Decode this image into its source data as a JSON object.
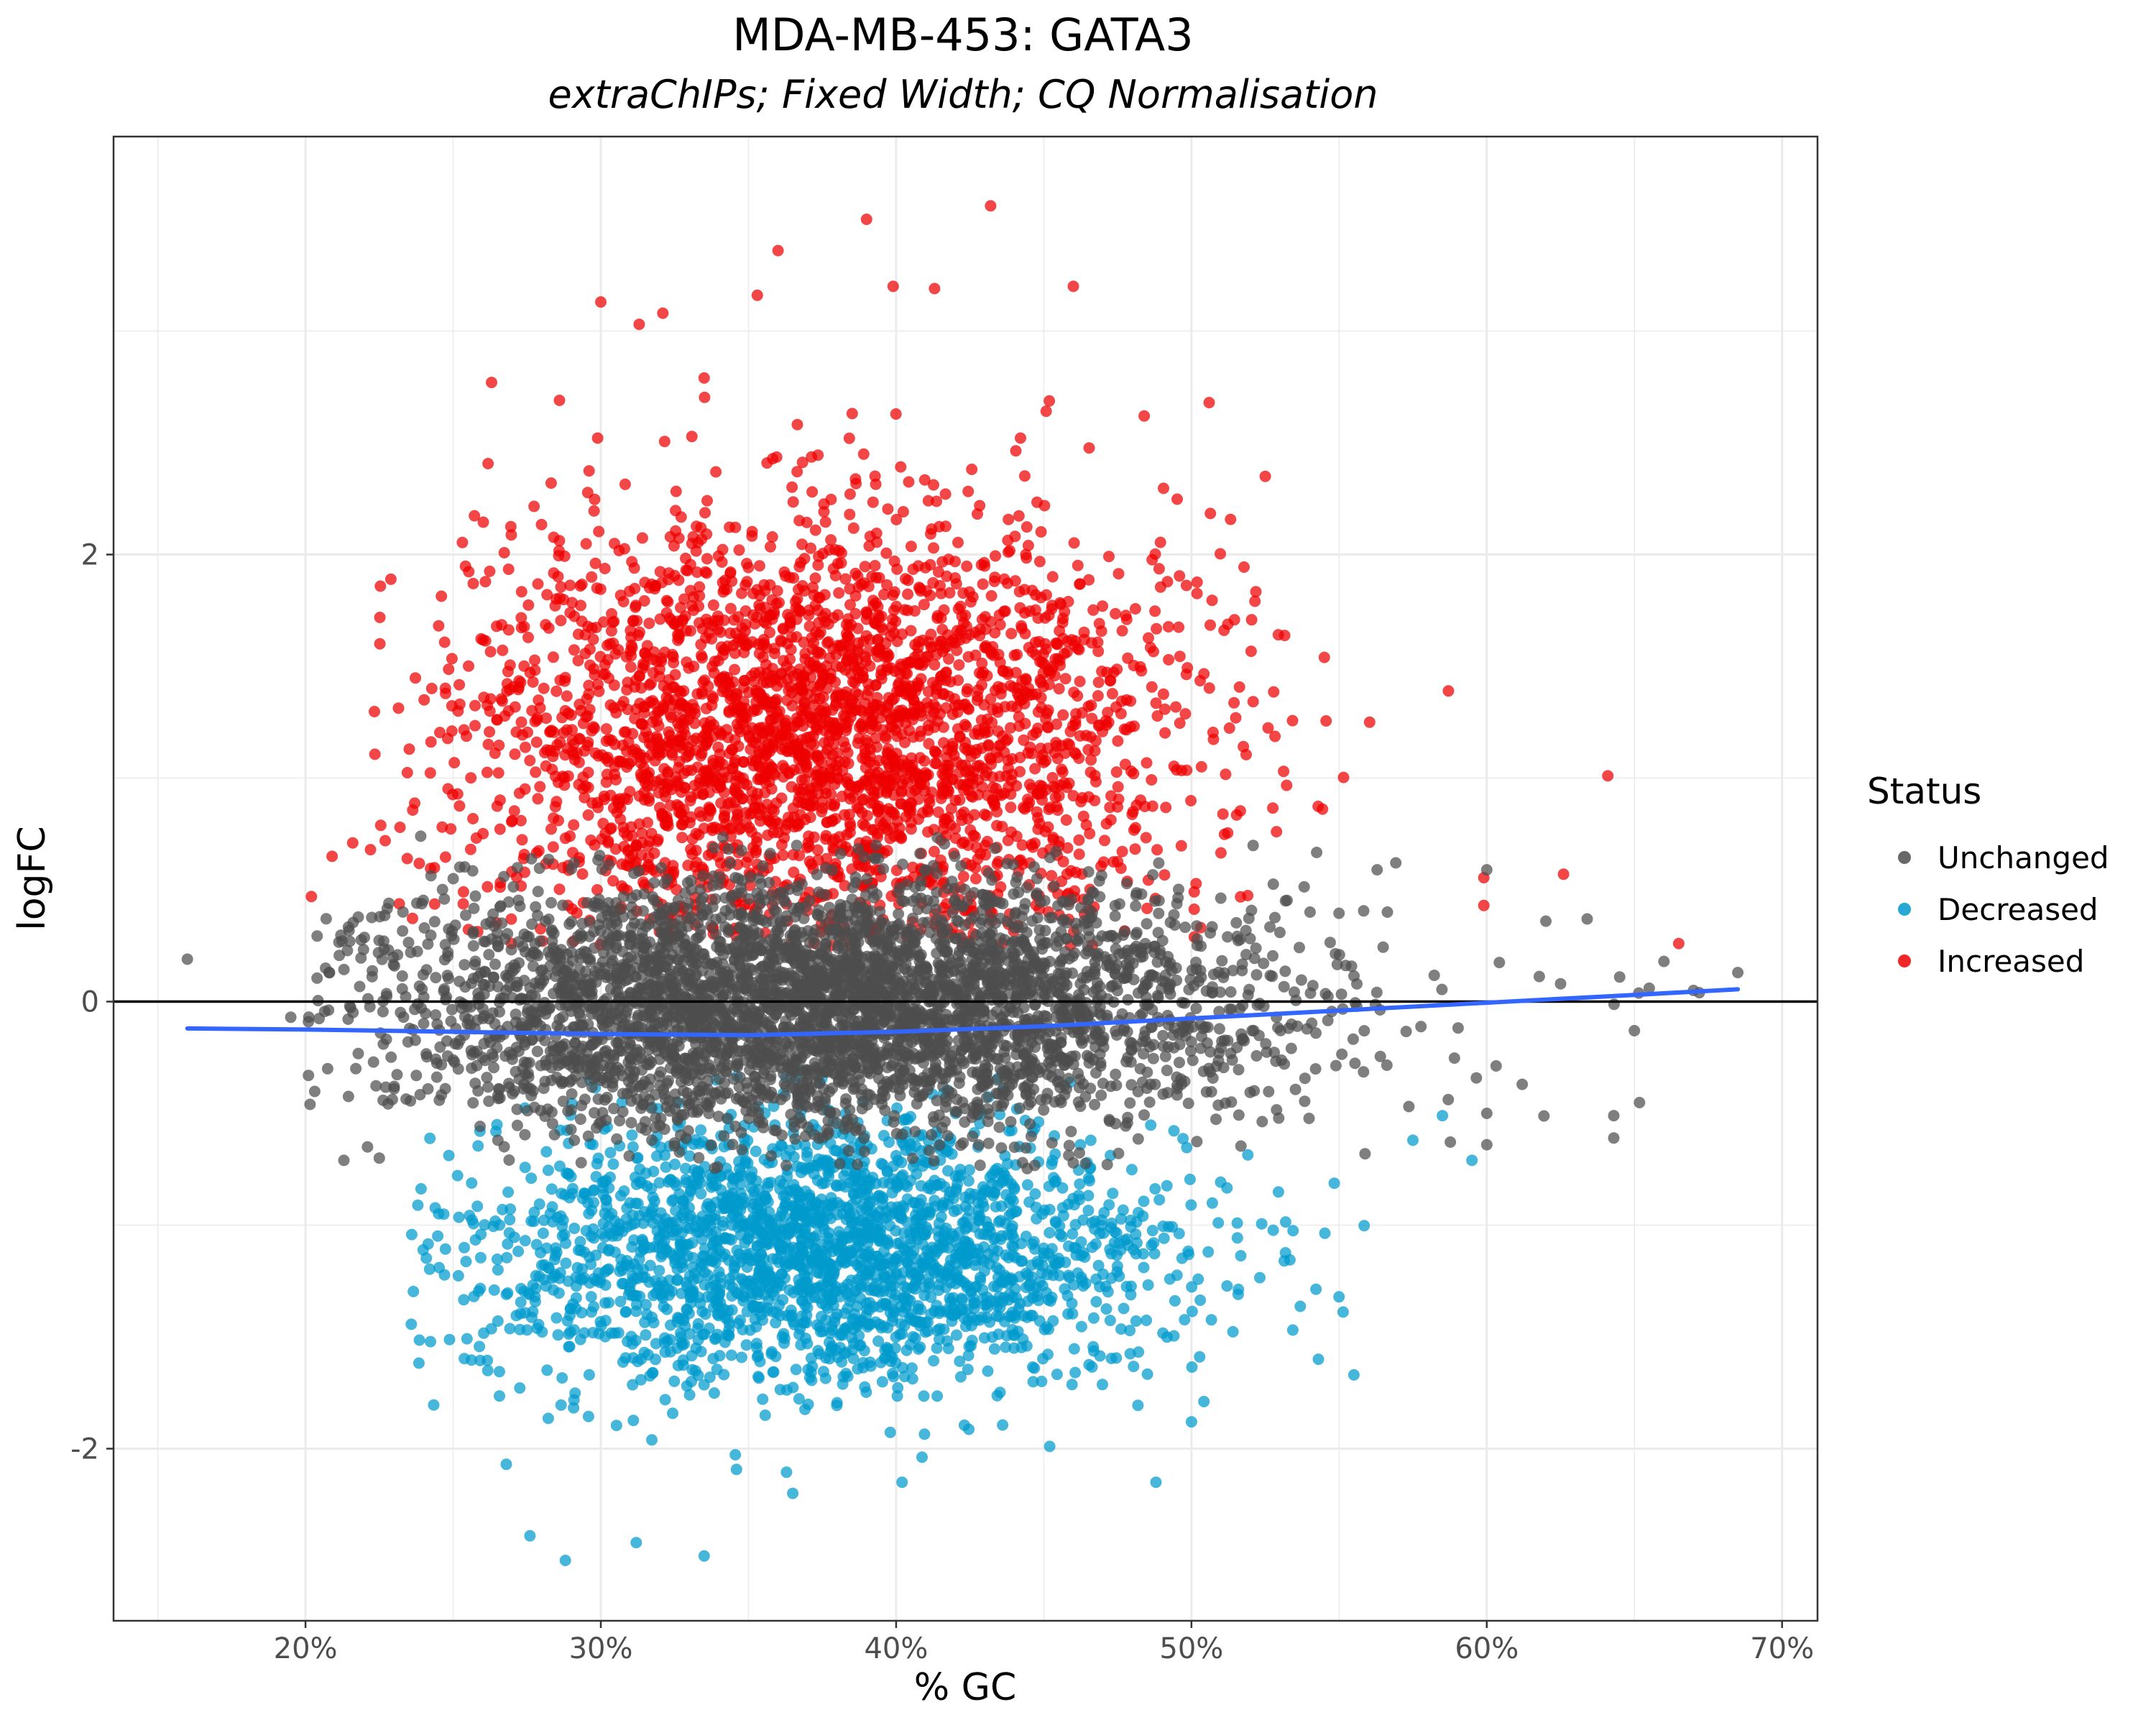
{
  "chart_data": {
    "type": "scatter",
    "title": "MDA-MB-453: GATA3",
    "subtitle": "extraChIPs; Fixed Width; CQ Normalisation",
    "xlabel": "% GC",
    "ylabel": "logFC",
    "xlim": [
      0.135,
      0.712
    ],
    "ylim": [
      -2.77,
      3.87
    ],
    "x_ticks": [
      {
        "value": 0.2,
        "label": "20%"
      },
      {
        "value": 0.3,
        "label": "30%"
      },
      {
        "value": 0.4,
        "label": "40%"
      },
      {
        "value": 0.5,
        "label": "50%"
      },
      {
        "value": 0.6,
        "label": "60%"
      },
      {
        "value": 0.7,
        "label": "70%"
      }
    ],
    "y_ticks": [
      {
        "value": -2,
        "label": "-2"
      },
      {
        "value": 0,
        "label": "0"
      },
      {
        "value": 2,
        "label": "2"
      }
    ],
    "grid": true,
    "reference_line": {
      "y": 0,
      "color": "#000000"
    },
    "legend": {
      "title": "Status",
      "placement": "right",
      "entries": [
        {
          "label": "Unchanged",
          "color": "#4D4D4D"
        },
        {
          "label": "Decreased",
          "color": "#009ACD"
        },
        {
          "label": "Increased",
          "color": "#EE0000"
        }
      ]
    },
    "series": [
      {
        "name": "Unchanged",
        "color": "#4D4D4D",
        "distribution": {
          "center_x": 0.37,
          "spread_x": 0.075,
          "center_y": -0.02,
          "spread_y": 0.28,
          "count": 4200
        },
        "points": [
          {
            "x": 0.16,
            "y": 0.19
          },
          {
            "x": 0.195,
            "y": -0.07
          },
          {
            "x": 0.201,
            "y": -0.09
          },
          {
            "x": 0.201,
            "y": -0.33
          },
          {
            "x": 0.215,
            "y": 0.27
          },
          {
            "x": 0.215,
            "y": -0.02
          },
          {
            "x": 0.221,
            "y": -0.65
          },
          {
            "x": 0.213,
            "y": -0.71
          },
          {
            "x": 0.225,
            "y": -0.7
          },
          {
            "x": 0.23,
            "y": -0.39
          },
          {
            "x": 0.239,
            "y": 0.74
          },
          {
            "x": 0.25,
            "y": 0.55
          },
          {
            "x": 0.6,
            "y": 0.59
          },
          {
            "x": 0.6,
            "y": -0.5
          },
          {
            "x": 0.6,
            "y": -0.64
          },
          {
            "x": 0.612,
            "y": -0.37
          },
          {
            "x": 0.62,
            "y": 0.36
          },
          {
            "x": 0.625,
            "y": 0.08
          },
          {
            "x": 0.634,
            "y": 0.37
          },
          {
            "x": 0.643,
            "y": -0.51
          },
          {
            "x": 0.643,
            "y": -0.61
          },
          {
            "x": 0.645,
            "y": 0.11
          },
          {
            "x": 0.65,
            "y": -0.13
          },
          {
            "x": 0.655,
            "y": 0.06
          },
          {
            "x": 0.66,
            "y": 0.18
          },
          {
            "x": 0.67,
            "y": 0.05
          },
          {
            "x": 0.672,
            "y": 0.04
          },
          {
            "x": 0.685,
            "y": 0.13
          }
        ]
      },
      {
        "name": "Decreased",
        "color": "#009ACD",
        "distribution": {
          "center_x": 0.375,
          "spread_x": 0.06,
          "center_y": -1.12,
          "spread_y": 0.3,
          "count": 2400
        },
        "points": [
          {
            "x": 0.268,
            "y": -2.07
          },
          {
            "x": 0.276,
            "y": -2.39
          },
          {
            "x": 0.288,
            "y": -2.5
          },
          {
            "x": 0.312,
            "y": -2.42
          },
          {
            "x": 0.335,
            "y": -2.48
          },
          {
            "x": 0.365,
            "y": -2.2
          },
          {
            "x": 0.402,
            "y": -2.15
          },
          {
            "x": 0.452,
            "y": -1.99
          },
          {
            "x": 0.488,
            "y": -2.15
          },
          {
            "x": 0.5,
            "y": -1.88
          },
          {
            "x": 0.555,
            "y": -1.67
          },
          {
            "x": 0.543,
            "y": -1.6
          },
          {
            "x": 0.575,
            "y": -0.62
          },
          {
            "x": 0.585,
            "y": -0.51
          },
          {
            "x": 0.595,
            "y": -0.71
          }
        ]
      },
      {
        "name": "Increased",
        "color": "#EE0000",
        "distribution": {
          "center_x": 0.375,
          "spread_x": 0.06,
          "center_y": 1.2,
          "spread_y": 0.48,
          "count": 3000
        },
        "points": [
          {
            "x": 0.202,
            "y": 0.47
          },
          {
            "x": 0.209,
            "y": 0.65
          },
          {
            "x": 0.216,
            "y": 0.71
          },
          {
            "x": 0.222,
            "y": 0.68
          },
          {
            "x": 0.227,
            "y": 0.72
          },
          {
            "x": 0.232,
            "y": 0.78
          },
          {
            "x": 0.263,
            "y": 2.77
          },
          {
            "x": 0.286,
            "y": 2.69
          },
          {
            "x": 0.3,
            "y": 3.13
          },
          {
            "x": 0.313,
            "y": 3.03
          },
          {
            "x": 0.321,
            "y": 3.08
          },
          {
            "x": 0.335,
            "y": 2.79
          },
          {
            "x": 0.353,
            "y": 3.16
          },
          {
            "x": 0.36,
            "y": 3.36
          },
          {
            "x": 0.39,
            "y": 3.5
          },
          {
            "x": 0.432,
            "y": 3.56
          },
          {
            "x": 0.399,
            "y": 3.2
          },
          {
            "x": 0.413,
            "y": 3.19
          },
          {
            "x": 0.46,
            "y": 3.2
          },
          {
            "x": 0.484,
            "y": 2.62
          },
          {
            "x": 0.506,
            "y": 2.68
          },
          {
            "x": 0.525,
            "y": 2.35
          },
          {
            "x": 0.545,
            "y": 1.54
          },
          {
            "x": 0.587,
            "y": 1.39
          },
          {
            "x": 0.599,
            "y": 0.43
          },
          {
            "x": 0.626,
            "y": 0.57
          },
          {
            "x": 0.641,
            "y": 1.01
          },
          {
            "x": 0.665,
            "y": 0.26
          }
        ]
      }
    ],
    "trend_line": {
      "name": "smooth fit",
      "color": "#3366FF",
      "points": [
        {
          "x": 0.16,
          "y": -0.12
        },
        {
          "x": 0.2,
          "y": -0.125
        },
        {
          "x": 0.25,
          "y": -0.135
        },
        {
          "x": 0.3,
          "y": -0.145
        },
        {
          "x": 0.35,
          "y": -0.15
        },
        {
          "x": 0.4,
          "y": -0.135
        },
        {
          "x": 0.45,
          "y": -0.11
        },
        {
          "x": 0.5,
          "y": -0.075
        },
        {
          "x": 0.55,
          "y": -0.04
        },
        {
          "x": 0.6,
          "y": -0.005
        },
        {
          "x": 0.65,
          "y": 0.03
        },
        {
          "x": 0.685,
          "y": 0.055
        }
      ]
    }
  }
}
